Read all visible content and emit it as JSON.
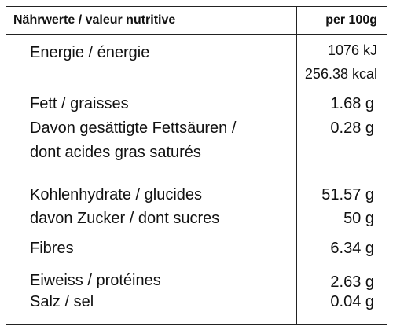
{
  "header": {
    "title": "Nährwerte / valeur nutritive",
    "per": "per 100g"
  },
  "rows": {
    "energie": {
      "label": "Energie / énergie",
      "kj": "1076 kJ",
      "kcal": "256.38 kcal"
    },
    "fett": {
      "label": "Fett / graisses",
      "value": "1.68 g"
    },
    "gesaettigt": {
      "label_line1": "Davon gesättigte Fettsäuren /",
      "label_line2": "dont acides gras saturés",
      "value": "0.28 g"
    },
    "kohlenhydrate": {
      "label": "Kohlenhydrate / glucides",
      "value": "51.57 g"
    },
    "zucker": {
      "label": "davon Zucker / dont sucres",
      "value": "50 g"
    },
    "fibres": {
      "label": "Fibres",
      "value": "6.34 g"
    },
    "eiweiss": {
      "label": "Eiweiss / protéines",
      "value": "2.63 g"
    },
    "salz": {
      "label": "Salz / sel",
      "value": "0.04 g"
    }
  }
}
